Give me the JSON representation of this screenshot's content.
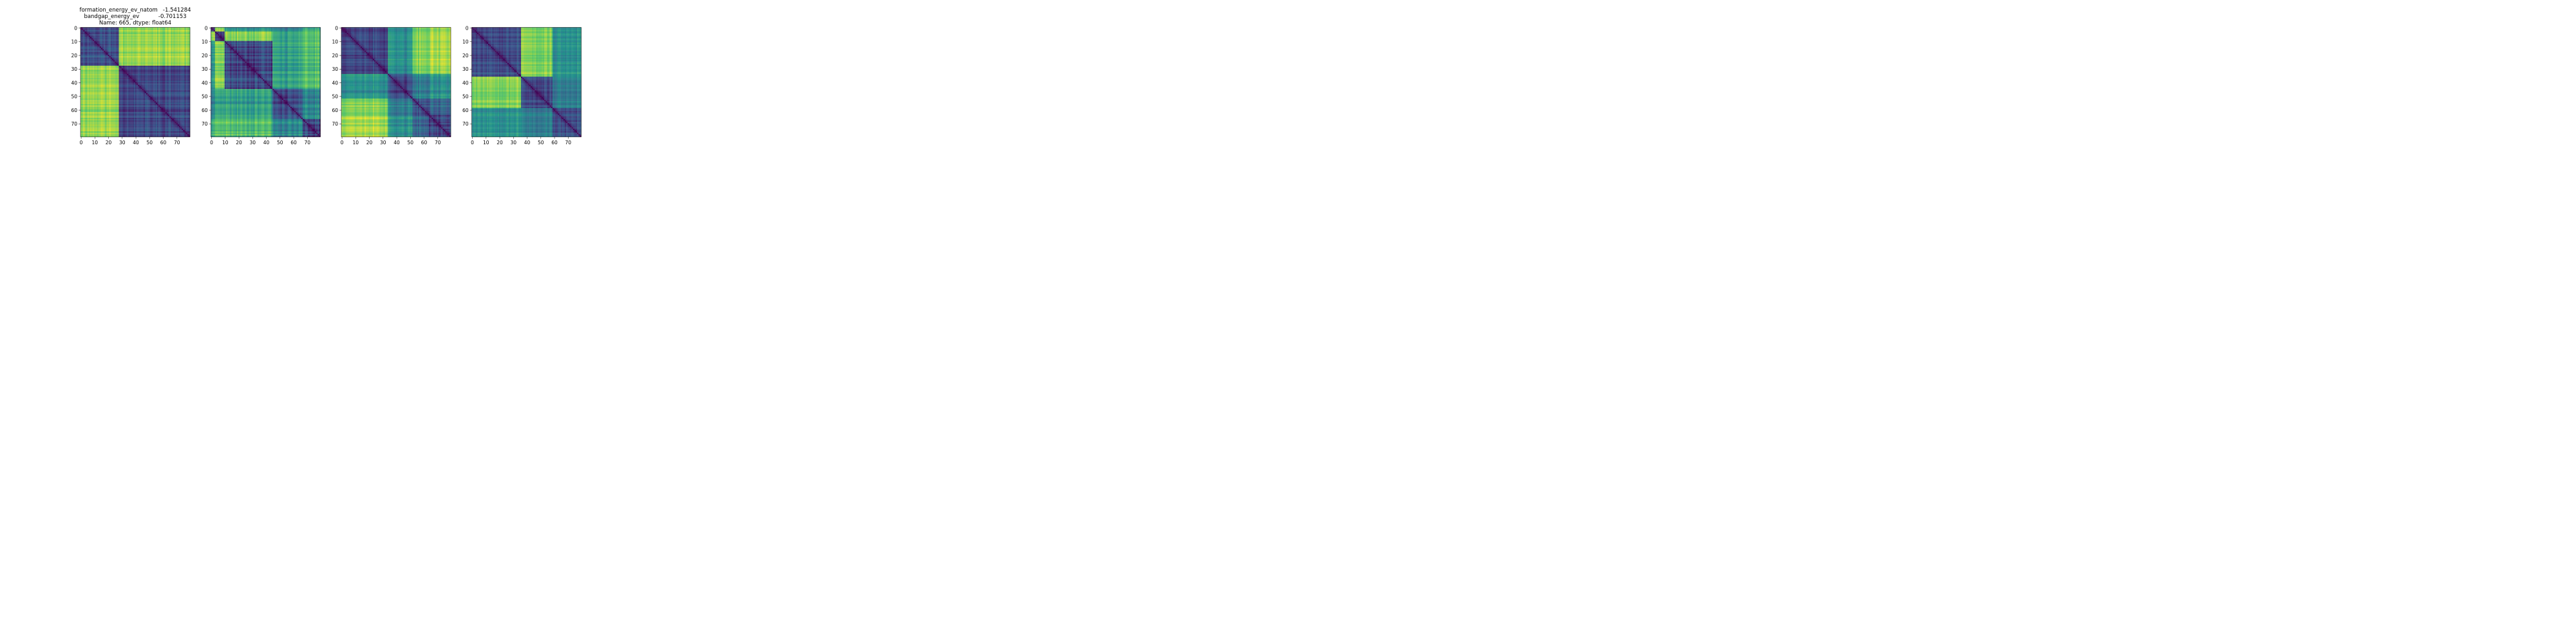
{
  "figure": {
    "title_lines": [
      "formation_energy_ev_natom   -1.541284",
      "bandgap_energy_ev           -0.701153",
      "Name: 665, dtype: float64"
    ]
  },
  "colormap": [
    "#440154",
    "#3b528b",
    "#21918c",
    "#5ec962",
    "#fde725"
  ],
  "chart_data": [
    {
      "type": "heatmap",
      "title": "formation_energy_ev_natom   -1.541284 / bandgap_energy_ev           -0.701153 / Name: 665, dtype: float64",
      "n": 80,
      "xlim": [
        0,
        79
      ],
      "ylim": [
        79,
        0
      ],
      "xticks": [
        0,
        10,
        20,
        30,
        40,
        50,
        60,
        70
      ],
      "yticks": [
        0,
        10,
        20,
        30,
        40,
        50,
        60,
        70
      ],
      "diagonal": 0.0,
      "block_breaks": [
        28
      ],
      "block_values": [
        [
          0.25,
          0.85
        ],
        [
          0.85,
          0.22
        ]
      ],
      "noise": 0.12,
      "seed": 11
    },
    {
      "type": "heatmap",
      "n": 80,
      "xlim": [
        0,
        79
      ],
      "ylim": [
        79,
        0
      ],
      "xticks": [
        0,
        10,
        20,
        30,
        40,
        50,
        60,
        70
      ],
      "yticks": [
        0,
        10,
        20,
        30,
        40,
        50,
        60,
        70
      ],
      "diagonal": 0.0,
      "block_breaks": [
        3,
        10,
        45,
        67
      ],
      "block_values": [
        [
          0.22,
          0.85,
          0.5,
          0.4,
          0.6
        ],
        [
          0.85,
          0.25,
          0.85,
          0.6,
          0.75
        ],
        [
          0.5,
          0.85,
          0.22,
          0.55,
          0.7
        ],
        [
          0.4,
          0.6,
          0.55,
          0.22,
          0.45
        ],
        [
          0.6,
          0.75,
          0.7,
          0.45,
          0.22
        ]
      ],
      "noise": 0.15,
      "seed": 23
    },
    {
      "type": "heatmap",
      "n": 80,
      "xlim": [
        0,
        79
      ],
      "ylim": [
        79,
        0
      ],
      "xticks": [
        0,
        10,
        20,
        30,
        40,
        50,
        60,
        70
      ],
      "yticks": [
        0,
        10,
        20,
        30,
        40,
        50,
        60,
        70
      ],
      "diagonal": 0.0,
      "block_breaks": [
        34,
        52,
        64
      ],
      "block_values": [
        [
          0.22,
          0.5,
          0.8,
          0.88
        ],
        [
          0.5,
          0.22,
          0.4,
          0.5
        ],
        [
          0.8,
          0.4,
          0.22,
          0.3
        ],
        [
          0.88,
          0.5,
          0.3,
          0.22
        ]
      ],
      "noise": 0.12,
      "seed": 37
    },
    {
      "type": "heatmap",
      "n": 80,
      "xlim": [
        0,
        79
      ],
      "ylim": [
        79,
        0
      ],
      "xticks": [
        0,
        10,
        20,
        30,
        40,
        50,
        60,
        70
      ],
      "yticks": [
        0,
        10,
        20,
        30,
        40,
        50,
        60,
        70
      ],
      "diagonal": 0.0,
      "block_breaks": [
        36,
        59
      ],
      "block_values": [
        [
          0.25,
          0.82,
          0.5
        ],
        [
          0.82,
          0.22,
          0.4
        ],
        [
          0.5,
          0.4,
          0.22
        ]
      ],
      "noise": 0.12,
      "seed": 53
    }
  ]
}
